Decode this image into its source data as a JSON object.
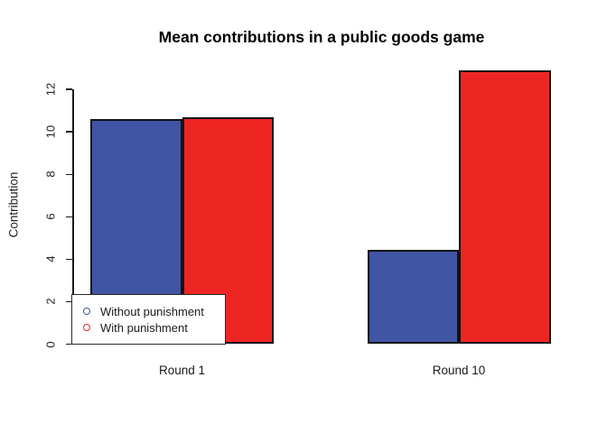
{
  "title": "Mean contributions in a public goods game",
  "chart_data": {
    "type": "bar",
    "title": "Mean contributions in a public goods game",
    "xlabel": "",
    "ylabel": "Contribution",
    "categories": [
      "Round 1",
      "Round 10"
    ],
    "series": [
      {
        "name": "Without punishment",
        "color": "#4055A4",
        "values": [
          10.6,
          4.45
        ]
      },
      {
        "name": "With punishment",
        "color": "#EE2623",
        "values": [
          10.7,
          12.9
        ]
      }
    ],
    "ylim": [
      0,
      13
    ],
    "yticks": [
      0,
      2,
      4,
      6,
      8,
      10,
      12
    ],
    "grid": false,
    "legend_position": "bottom-left",
    "bar_border_color": "#121212",
    "background": "#FFFFFF",
    "axis_color": "#1a1a1a"
  }
}
